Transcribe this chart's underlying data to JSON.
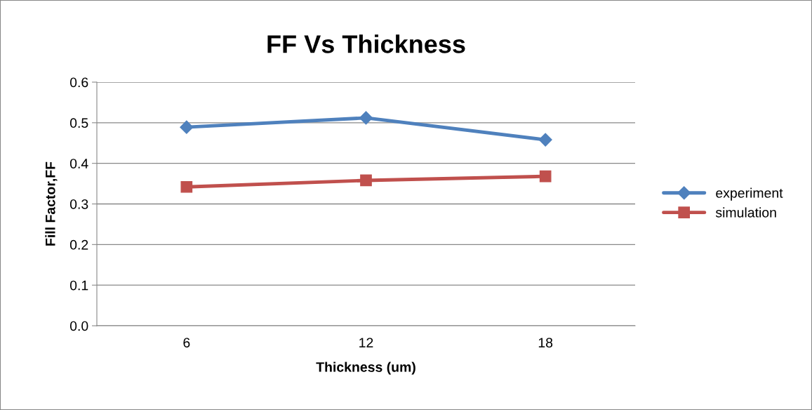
{
  "chart_data": {
    "type": "line",
    "title": "FF Vs Thickness",
    "xlabel": "Thickness (um)",
    "ylabel": "Fill Factor,FF",
    "categories": [
      "6",
      "12",
      "18"
    ],
    "series": [
      {
        "name": "experiment",
        "color": "#4f81bd",
        "marker": "diamond",
        "values": [
          0.489,
          0.512,
          0.458
        ]
      },
      {
        "name": "simulation",
        "color": "#c0504d",
        "marker": "square",
        "values": [
          0.342,
          0.358,
          0.368
        ]
      }
    ],
    "ylim": [
      0,
      0.6
    ],
    "yticks": [
      {
        "value": 0,
        "label": "0.0"
      },
      0.1,
      0.2,
      0.3,
      0.4,
      0.5,
      0.6
    ],
    "grid": "y",
    "legend": "right",
    "line_style": "solid"
  }
}
